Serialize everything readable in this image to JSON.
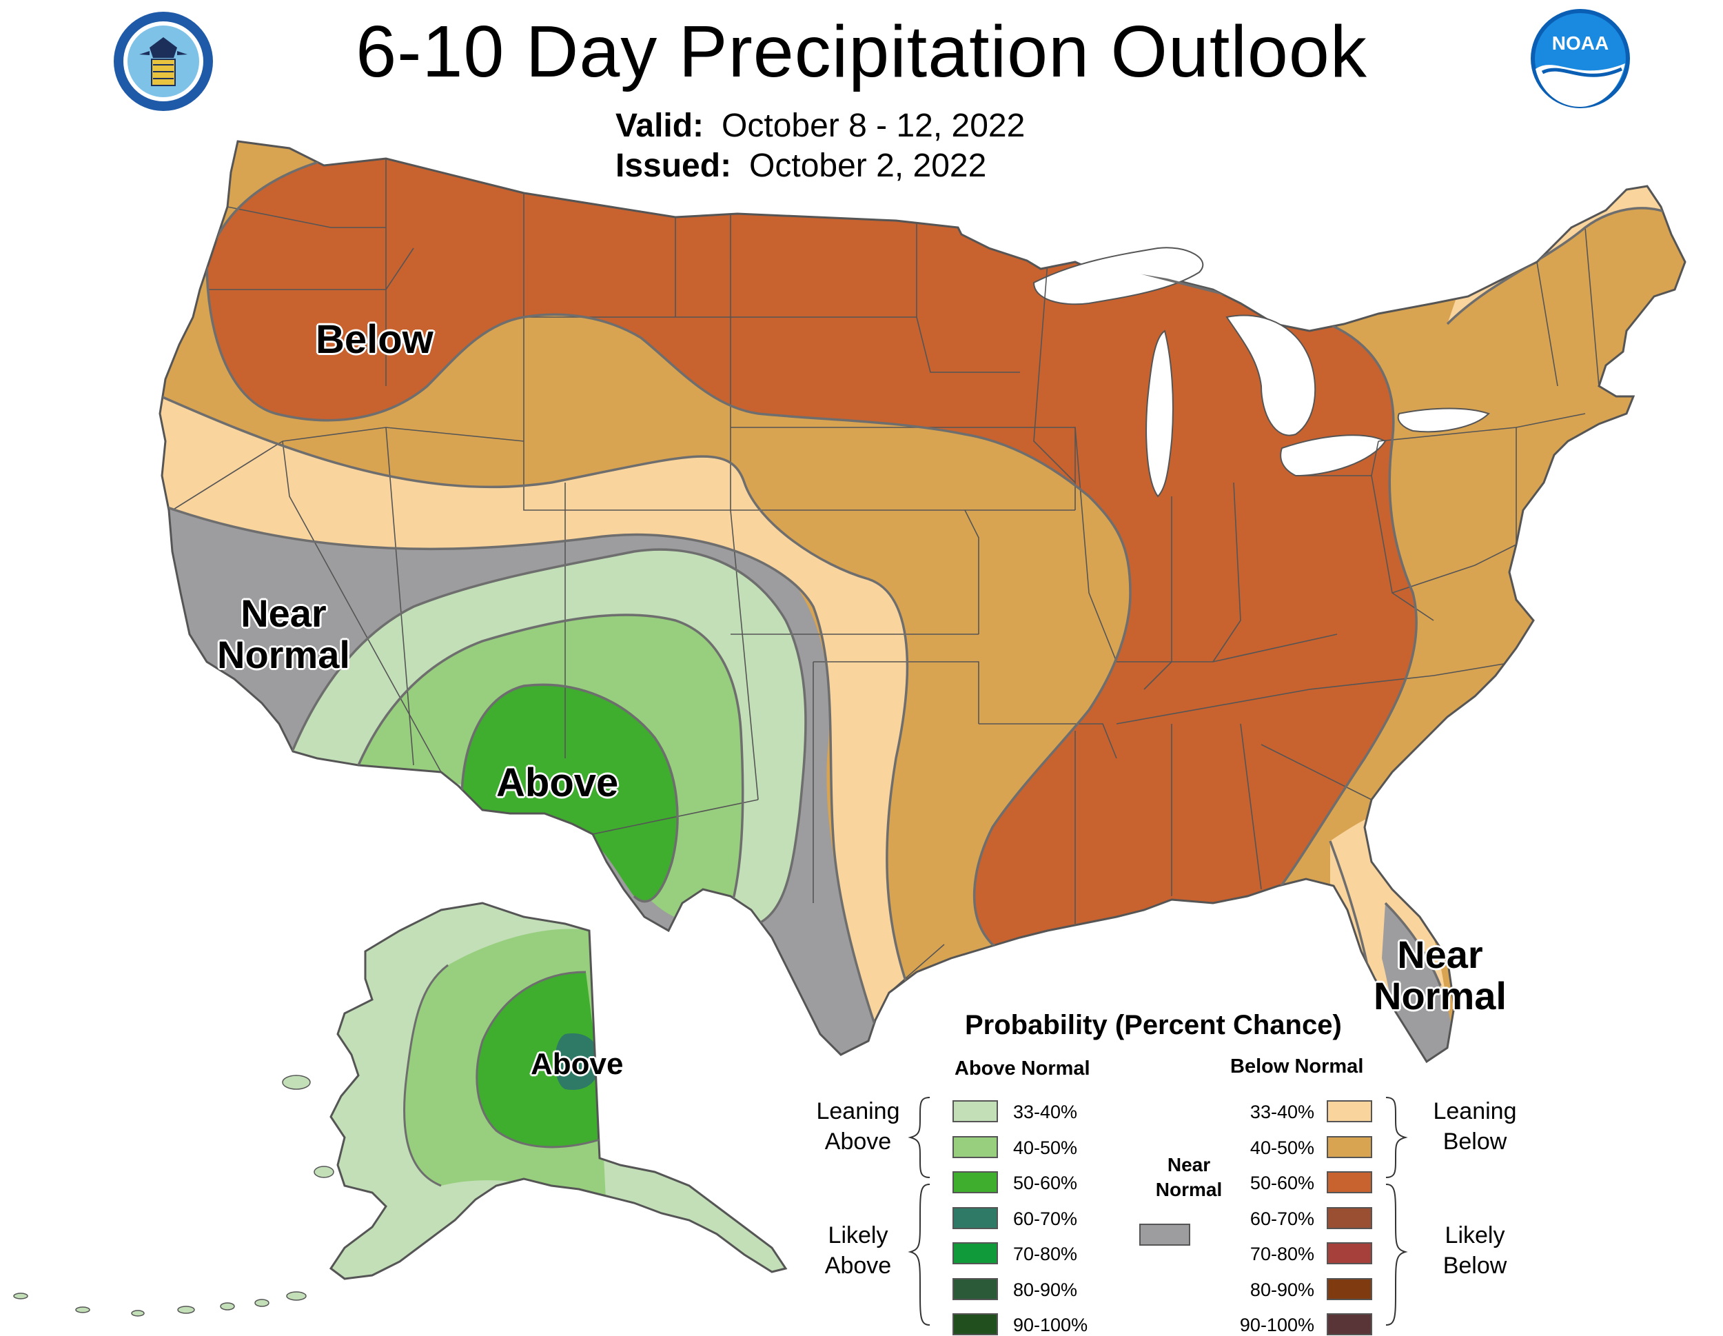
{
  "header": {
    "title": "6-10 Day Precipitation Outlook",
    "valid_label": "Valid:",
    "valid_value": "October 8 - 12, 2022",
    "issued_label": "Issued:",
    "issued_value": "October 2, 2022"
  },
  "logos": {
    "left": "department-of-commerce-seal",
    "right": "noaa-logo",
    "right_text": "NOAA"
  },
  "map_labels": {
    "below": "Below",
    "above_conus": "Above",
    "near_normal_west_1": "Near",
    "near_normal_west_2": "Normal",
    "near_normal_fl_1": "Near",
    "near_normal_fl_2": "Normal",
    "above_alaska": "Above"
  },
  "legend": {
    "title": "Probability (Percent Chance)",
    "above_header": "Above Normal",
    "below_header": "Below Normal",
    "near_header_1": "Near",
    "near_header_2": "Normal",
    "leaning_above_1": "Leaning",
    "leaning_above_2": "Above",
    "likely_above_1": "Likely",
    "likely_above_2": "Above",
    "leaning_below_1": "Leaning",
    "leaning_below_2": "Below",
    "likely_below_1": "Likely",
    "likely_below_2": "Below",
    "above": [
      {
        "range": "33-40%",
        "color": "#c2dfb7"
      },
      {
        "range": "40-50%",
        "color": "#98cf7e"
      },
      {
        "range": "50-60%",
        "color": "#3fae2f"
      },
      {
        "range": "60-70%",
        "color": "#2e7a66"
      },
      {
        "range": "70-80%",
        "color": "#119a3a"
      },
      {
        "range": "80-90%",
        "color": "#2b5a38"
      },
      {
        "range": "90-100%",
        "color": "#214f1e"
      }
    ],
    "below": [
      {
        "range": "33-40%",
        "color": "#f9d49d"
      },
      {
        "range": "40-50%",
        "color": "#d9a451"
      },
      {
        "range": "50-60%",
        "color": "#c8622f"
      },
      {
        "range": "60-70%",
        "color": "#9a4f32"
      },
      {
        "range": "70-80%",
        "color": "#a5403a"
      },
      {
        "range": "80-90%",
        "color": "#7f3a0f"
      },
      {
        "range": "90-100%",
        "color": "#5a3537"
      }
    ],
    "near_color": "#9d9c9e"
  },
  "colors": {
    "state_lines": "#555555",
    "contour_lines": "#6e6e6e",
    "water": "#ffffff"
  }
}
